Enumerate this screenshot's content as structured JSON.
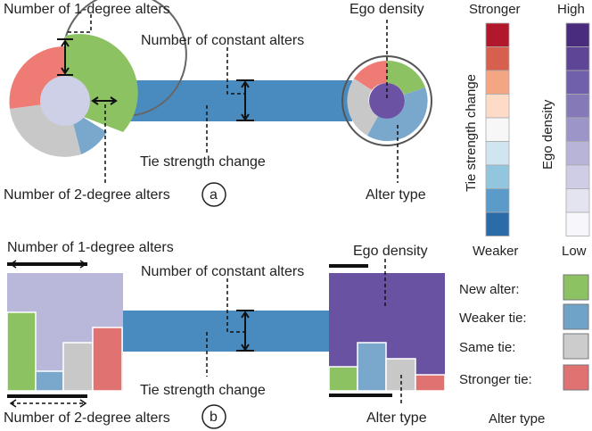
{
  "panel_a": {
    "label": "a",
    "annotations": {
      "one_degree": "Number of 1-degree alters",
      "constant": "Number of constant alters",
      "tie_change": "Tie strength change",
      "two_degree": "Number of 2-degree alters",
      "ego_density": "Ego density",
      "alter_type": "Alter type"
    }
  },
  "panel_b": {
    "label": "b",
    "annotations": {
      "one_degree": "Number of 1-degree alters",
      "constant": "Number of constant alters",
      "tie_change": "Tie strength change",
      "two_degree": "Number of 2-degree alters",
      "ego_density": "Ego density",
      "alter_type": "Alter type"
    }
  },
  "legend_tie": {
    "top": "Stronger",
    "bottom": "Weaker",
    "axis": "Tie strength change",
    "colors": [
      "#b2182b",
      "#d6604d",
      "#f4a582",
      "#fddbc7",
      "#f7f7f7",
      "#d1e5f0",
      "#92c5de",
      "#5a9bc9",
      "#2b6ca8"
    ]
  },
  "legend_density": {
    "top": "High",
    "bottom": "Low",
    "axis": "Ego density",
    "colors": [
      "#4a2c7f",
      "#5e4596",
      "#7060ab",
      "#8579b8",
      "#9c96c8",
      "#b7b4d8",
      "#cfcde6",
      "#e4e3f0",
      "#f7f7fb"
    ]
  },
  "legend_alter": {
    "items": [
      {
        "label": "New alter:",
        "color": "#8dc263"
      },
      {
        "label": "Weaker tie:",
        "color": "#6fa3c8"
      },
      {
        "label": "Same tie:",
        "color": "#cccccc"
      },
      {
        "label": "Stronger tie:",
        "color": "#e07272"
      }
    ],
    "caption": "Alter type"
  }
}
